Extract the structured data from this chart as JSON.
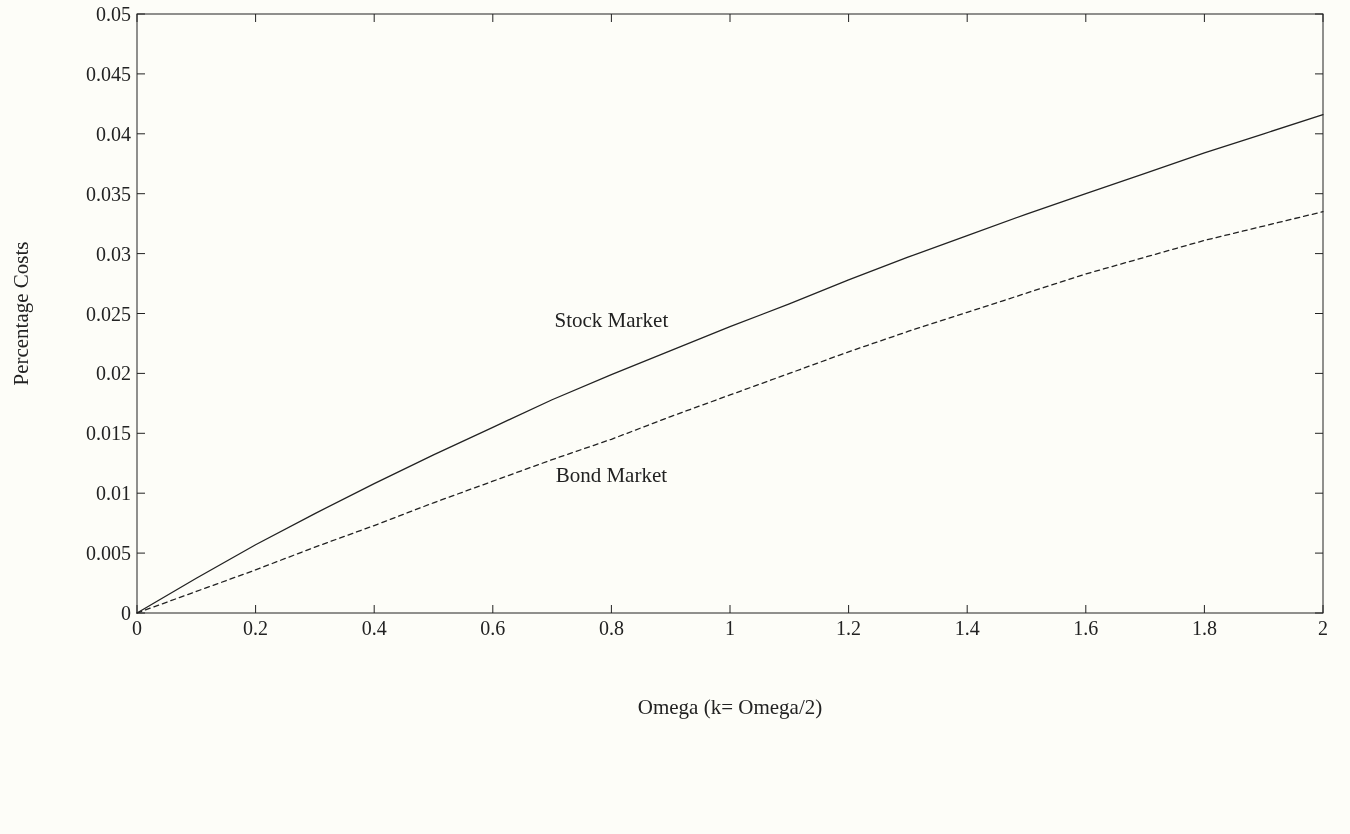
{
  "chart_data": {
    "type": "line",
    "xlabel": "Omega (k= Omega/2)",
    "ylabel": "Percentage Costs",
    "xlim": [
      0,
      2
    ],
    "xticks": [
      0,
      0.2,
      0.4,
      0.6,
      0.8,
      1,
      1.2,
      1.4,
      1.6,
      1.8,
      2
    ],
    "ylim": [
      0,
      0.05
    ],
    "yticks": [
      0,
      0.005,
      0.01,
      0.015,
      0.02,
      0.025,
      0.03,
      0.035,
      0.04,
      0.045,
      0.05
    ],
    "grid": false,
    "marker": "none",
    "x": [
      0,
      0.1,
      0.2,
      0.3,
      0.4,
      0.5,
      0.6,
      0.7,
      0.8,
      0.9,
      1,
      1.1,
      1.2,
      1.3,
      1.4,
      1.5,
      1.6,
      1.7,
      1.8,
      1.9,
      2
    ],
    "series": [
      {
        "name": "Stock Market",
        "color": "#222222",
        "line_style": "solid",
        "values": [
          0,
          0.0029,
          0.0057,
          0.0083,
          0.0108,
          0.0132,
          0.0155,
          0.0178,
          0.0199,
          0.0219,
          0.0239,
          0.0258,
          0.0278,
          0.0297,
          0.0315,
          0.0333,
          0.035,
          0.0367,
          0.0384,
          0.04,
          0.0416
        ]
      },
      {
        "name": "Bond Market",
        "color": "#222222",
        "line_style": "dashed",
        "values": [
          0,
          0.0018,
          0.0036,
          0.0055,
          0.0073,
          0.0092,
          0.011,
          0.0128,
          0.0145,
          0.0164,
          0.0182,
          0.02,
          0.0218,
          0.0235,
          0.0251,
          0.0267,
          0.0283,
          0.0297,
          0.0311,
          0.0323,
          0.0335
        ]
      }
    ]
  }
}
